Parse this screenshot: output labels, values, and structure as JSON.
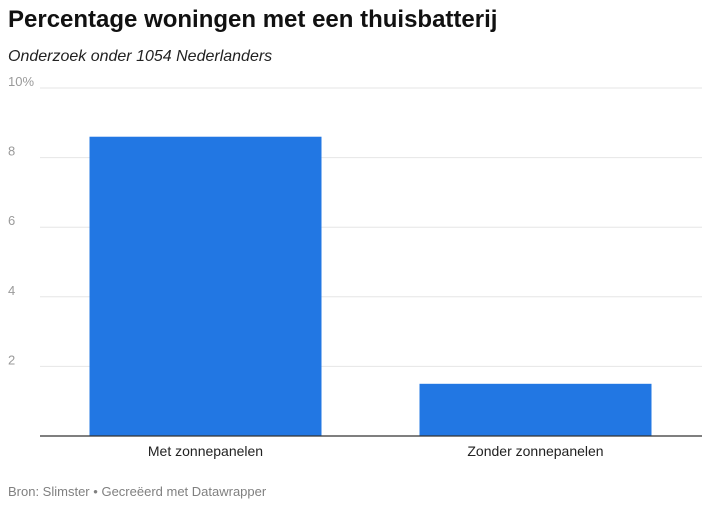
{
  "header": {
    "title": "Percentage woningen met een thuisbatterij",
    "subtitle": "Onderzoek onder 1054 Nederlanders"
  },
  "footer": {
    "source": "Bron: Slimster",
    "separator": "•",
    "credit": "Gecreëerd met Datawrapper"
  },
  "colors": {
    "bar": "#2277e3",
    "grid": "#e6e6e6",
    "axis": "#333333"
  },
  "chart_data": {
    "type": "bar",
    "title": "Percentage woningen met een thuisbatterij",
    "subtitle": "Onderzoek onder 1054 Nederlanders",
    "categories": [
      "Met zonnepanelen",
      "Zonder zonnepanelen"
    ],
    "values": [
      8.6,
      1.5
    ],
    "unit": "%",
    "ylim": [
      0,
      10
    ],
    "yticks": [
      2,
      4,
      6,
      8,
      10
    ],
    "ytick_labels": [
      "2",
      "4",
      "6",
      "8",
      "10%"
    ],
    "grid": true,
    "legend": "none"
  }
}
